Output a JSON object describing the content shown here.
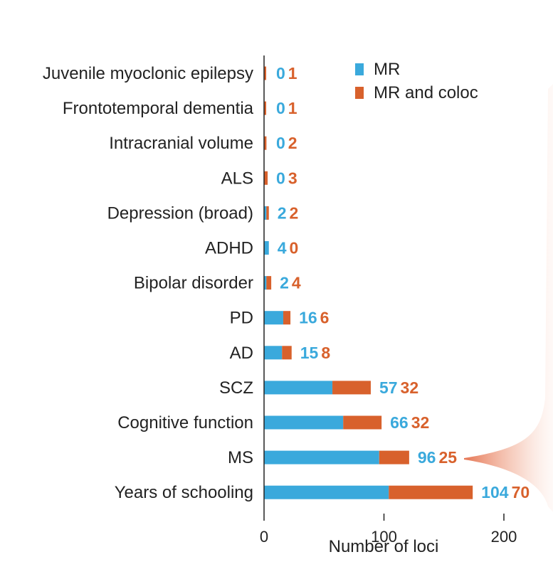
{
  "colors": {
    "mr": "#3aa9dc",
    "coloc": "#d8612c",
    "axis": "#222222",
    "bracket": "#e88a6b"
  },
  "chart_data": {
    "type": "bar",
    "orientation": "horizontal",
    "stacked": true,
    "categories": [
      "Juvenile myoclonic epilepsy",
      "Frontotemporal dementia",
      "Intracranial volume",
      "ALS",
      "Depression (broad)",
      "ADHD",
      "Bipolar disorder",
      "PD",
      "AD",
      "SCZ",
      "Cognitive function",
      "MS",
      "Years of schooling"
    ],
    "series": [
      {
        "name": "MR",
        "values": [
          0,
          0,
          0,
          0,
          2,
          4,
          2,
          16,
          15,
          57,
          66,
          96,
          104
        ]
      },
      {
        "name": "MR and coloc",
        "values": [
          1,
          1,
          2,
          3,
          2,
          0,
          4,
          6,
          8,
          32,
          32,
          25,
          70
        ]
      }
    ],
    "xlabel": "Number of loci",
    "xlim": [
      0,
      200
    ],
    "xticks": [
      "0",
      "100",
      "200"
    ],
    "legend_position": "top-right"
  }
}
